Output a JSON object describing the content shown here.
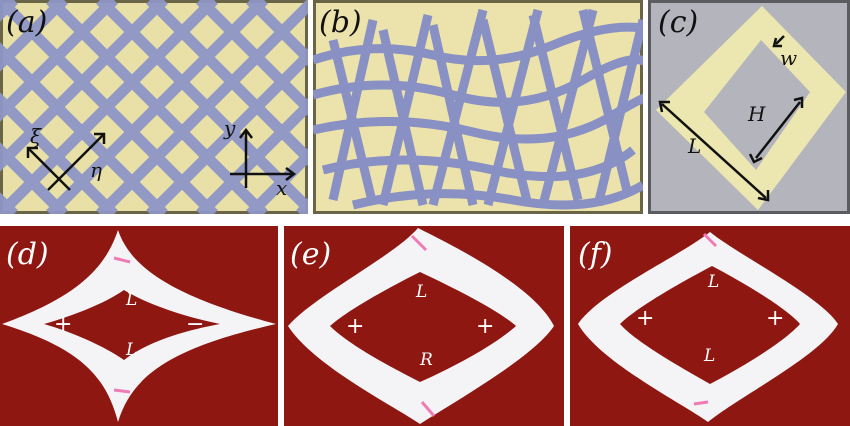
{
  "figure": {
    "panel_a": {
      "label": "(a)",
      "axis_xi": "ξ",
      "axis_eta": "η",
      "axis_y": "y",
      "axis_x": "x"
    },
    "panel_b": {
      "label": "(b)"
    },
    "panel_c": {
      "label": "(c)",
      "dim_w": "w",
      "dim_H": "H",
      "dim_L": "L"
    },
    "panel_d": {
      "label": "(d)",
      "top_edge": "L",
      "bottom_edge": "L",
      "left_sign": "+",
      "right_sign": "−"
    },
    "panel_e": {
      "label": "(e)",
      "top_edge": "L",
      "bottom_edge": "R",
      "left_sign": "+",
      "right_sign": "+"
    },
    "panel_f": {
      "label": "(f)",
      "top_edge": "L",
      "bottom_edge": "L",
      "left_sign": "+",
      "right_sign": "+"
    }
  },
  "colors": {
    "paper_yellow": "#e6dda6",
    "lattice_blue": "#8e96c6",
    "board_red": "#8e1712",
    "strip_white": "#f4f4f6",
    "pin_pink": "#f07ab4",
    "grey_bg": "#b3b4bb"
  }
}
